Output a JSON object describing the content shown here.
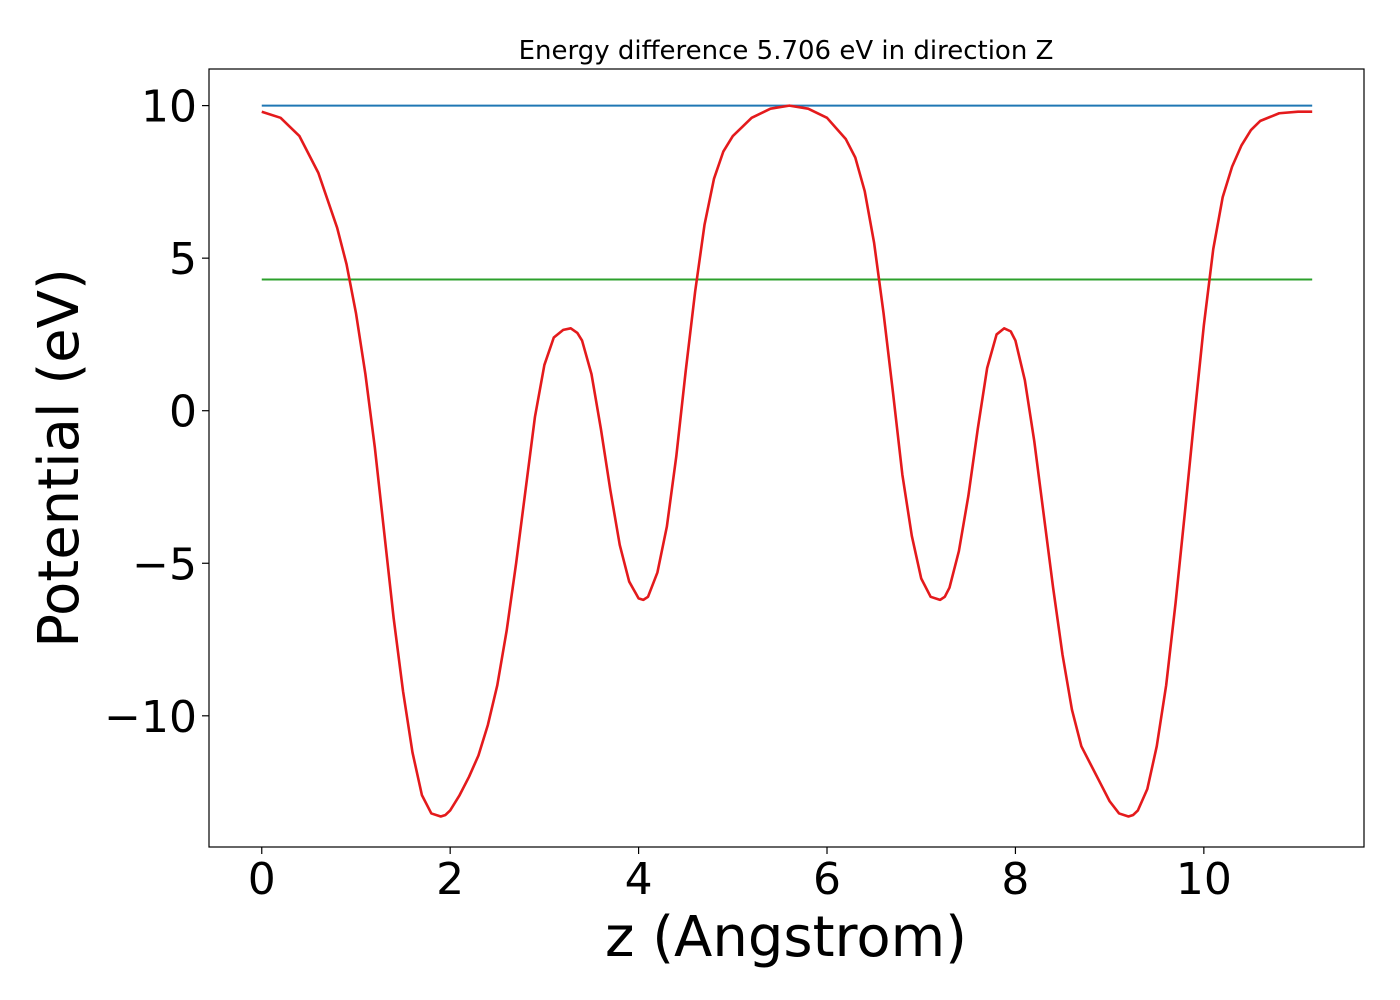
{
  "chart_data": {
    "type": "line",
    "title": "Energy difference 5.706 eV in direction Z",
    "xlabel": "z (Angstrom)",
    "ylabel": "Potential (eV)",
    "xlim": [
      -0.56,
      11.7
    ],
    "ylim": [
      -14.3,
      11.2
    ],
    "xticks": [
      {
        "value": 0,
        "label": "0"
      },
      {
        "value": 2,
        "label": "2"
      },
      {
        "value": 4,
        "label": "4"
      },
      {
        "value": 6,
        "label": "6"
      },
      {
        "value": 8,
        "label": "8"
      },
      {
        "value": 10,
        "label": "10"
      }
    ],
    "yticks": [
      {
        "value": 10,
        "label": "10"
      },
      {
        "value": 5,
        "label": "5"
      },
      {
        "value": 0,
        "label": "0"
      },
      {
        "value": -5,
        "label": "−5"
      },
      {
        "value": -10,
        "label": "−10"
      }
    ],
    "grid": false,
    "series": [
      {
        "color": "#1f77b4",
        "x": [
          0,
          11.15
        ],
        "y": [
          10.0,
          10.0
        ]
      },
      {
        "color": "#2ca02c",
        "x": [
          0,
          11.15
        ],
        "y": [
          4.3,
          4.3
        ]
      },
      {
        "color": "#e41a1c",
        "x": [
          0,
          0.2,
          0.4,
          0.6,
          0.8,
          0.9,
          1.0,
          1.1,
          1.2,
          1.3,
          1.4,
          1.5,
          1.6,
          1.7,
          1.8,
          1.9,
          1.95,
          2.0,
          2.1,
          2.2,
          2.3,
          2.4,
          2.5,
          2.6,
          2.7,
          2.8,
          2.9,
          3.0,
          3.1,
          3.2,
          3.28,
          3.35,
          3.4,
          3.5,
          3.6,
          3.7,
          3.8,
          3.9,
          4.0,
          4.05,
          4.1,
          4.2,
          4.3,
          4.4,
          4.5,
          4.6,
          4.7,
          4.8,
          4.9,
          5.0,
          5.2,
          5.4,
          5.6,
          5.8,
          6.0,
          6.2,
          6.3,
          6.4,
          6.5,
          6.6,
          6.7,
          6.8,
          6.9,
          7.0,
          7.1,
          7.2,
          7.25,
          7.3,
          7.4,
          7.5,
          7.6,
          7.7,
          7.8,
          7.88,
          7.95,
          8.0,
          8.1,
          8.2,
          8.3,
          8.4,
          8.5,
          8.6,
          8.7,
          8.8,
          8.9,
          9.0,
          9.1,
          9.2,
          9.25,
          9.3,
          9.4,
          9.5,
          9.6,
          9.7,
          9.8,
          9.9,
          10.0,
          10.1,
          10.2,
          10.3,
          10.4,
          10.5,
          10.6,
          10.8,
          11.0,
          11.15
        ],
        "y": [
          9.8,
          9.6,
          9.0,
          7.8,
          6.0,
          4.8,
          3.2,
          1.2,
          -1.2,
          -4.0,
          -6.8,
          -9.2,
          -11.2,
          -12.6,
          -13.2,
          -13.3,
          -13.25,
          -13.1,
          -12.6,
          -12.0,
          -11.3,
          -10.3,
          -9.0,
          -7.2,
          -5.0,
          -2.6,
          -0.2,
          1.5,
          2.4,
          2.65,
          2.7,
          2.55,
          2.3,
          1.2,
          -0.6,
          -2.6,
          -4.4,
          -5.6,
          -6.15,
          -6.2,
          -6.1,
          -5.3,
          -3.8,
          -1.5,
          1.3,
          3.9,
          6.1,
          7.6,
          8.5,
          9.0,
          9.6,
          9.9,
          10.0,
          9.9,
          9.6,
          8.9,
          8.3,
          7.2,
          5.5,
          3.2,
          0.6,
          -2.1,
          -4.1,
          -5.5,
          -6.1,
          -6.2,
          -6.1,
          -5.8,
          -4.6,
          -2.8,
          -0.6,
          1.4,
          2.5,
          2.7,
          2.6,
          2.3,
          1.0,
          -1.0,
          -3.4,
          -5.8,
          -8.0,
          -9.8,
          -11.0,
          -11.6,
          -12.2,
          -12.8,
          -13.2,
          -13.3,
          -13.25,
          -13.1,
          -12.4,
          -11.0,
          -9.0,
          -6.3,
          -3.3,
          -0.2,
          2.8,
          5.3,
          7.0,
          8.0,
          8.7,
          9.2,
          9.5,
          9.75,
          9.8,
          9.8
        ]
      }
    ]
  }
}
